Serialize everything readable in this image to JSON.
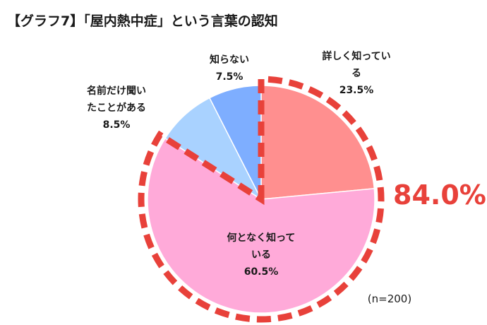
{
  "title": "【グラフ7】「屋内熱中症」という言葉の認知",
  "highlight": {
    "value": "84.0%",
    "color": "#e8413a"
  },
  "note": "(n=200)",
  "chart_data": {
    "type": "pie",
    "start_angle_deg": 0,
    "direction": "clockwise",
    "slices": [
      {
        "lines": [
          "詳しく知ってい",
          "る"
        ],
        "pct_label": "23.5%",
        "value": 23.5,
        "color": "#ff8f8f"
      },
      {
        "lines": [
          "何となく知って",
          "いる"
        ],
        "pct_label": "60.5%",
        "value": 60.5,
        "color": "#ffaad9"
      },
      {
        "lines": [
          "名前だけ聞い",
          "たことがある"
        ],
        "pct_label": "8.5%",
        "value": 8.5,
        "color": "#a9d2ff"
      },
      {
        "lines": [
          "知らない"
        ],
        "pct_label": "7.5%",
        "value": 7.5,
        "color": "#7eaeff"
      }
    ],
    "highlighted_slices": [
      0,
      1
    ]
  }
}
